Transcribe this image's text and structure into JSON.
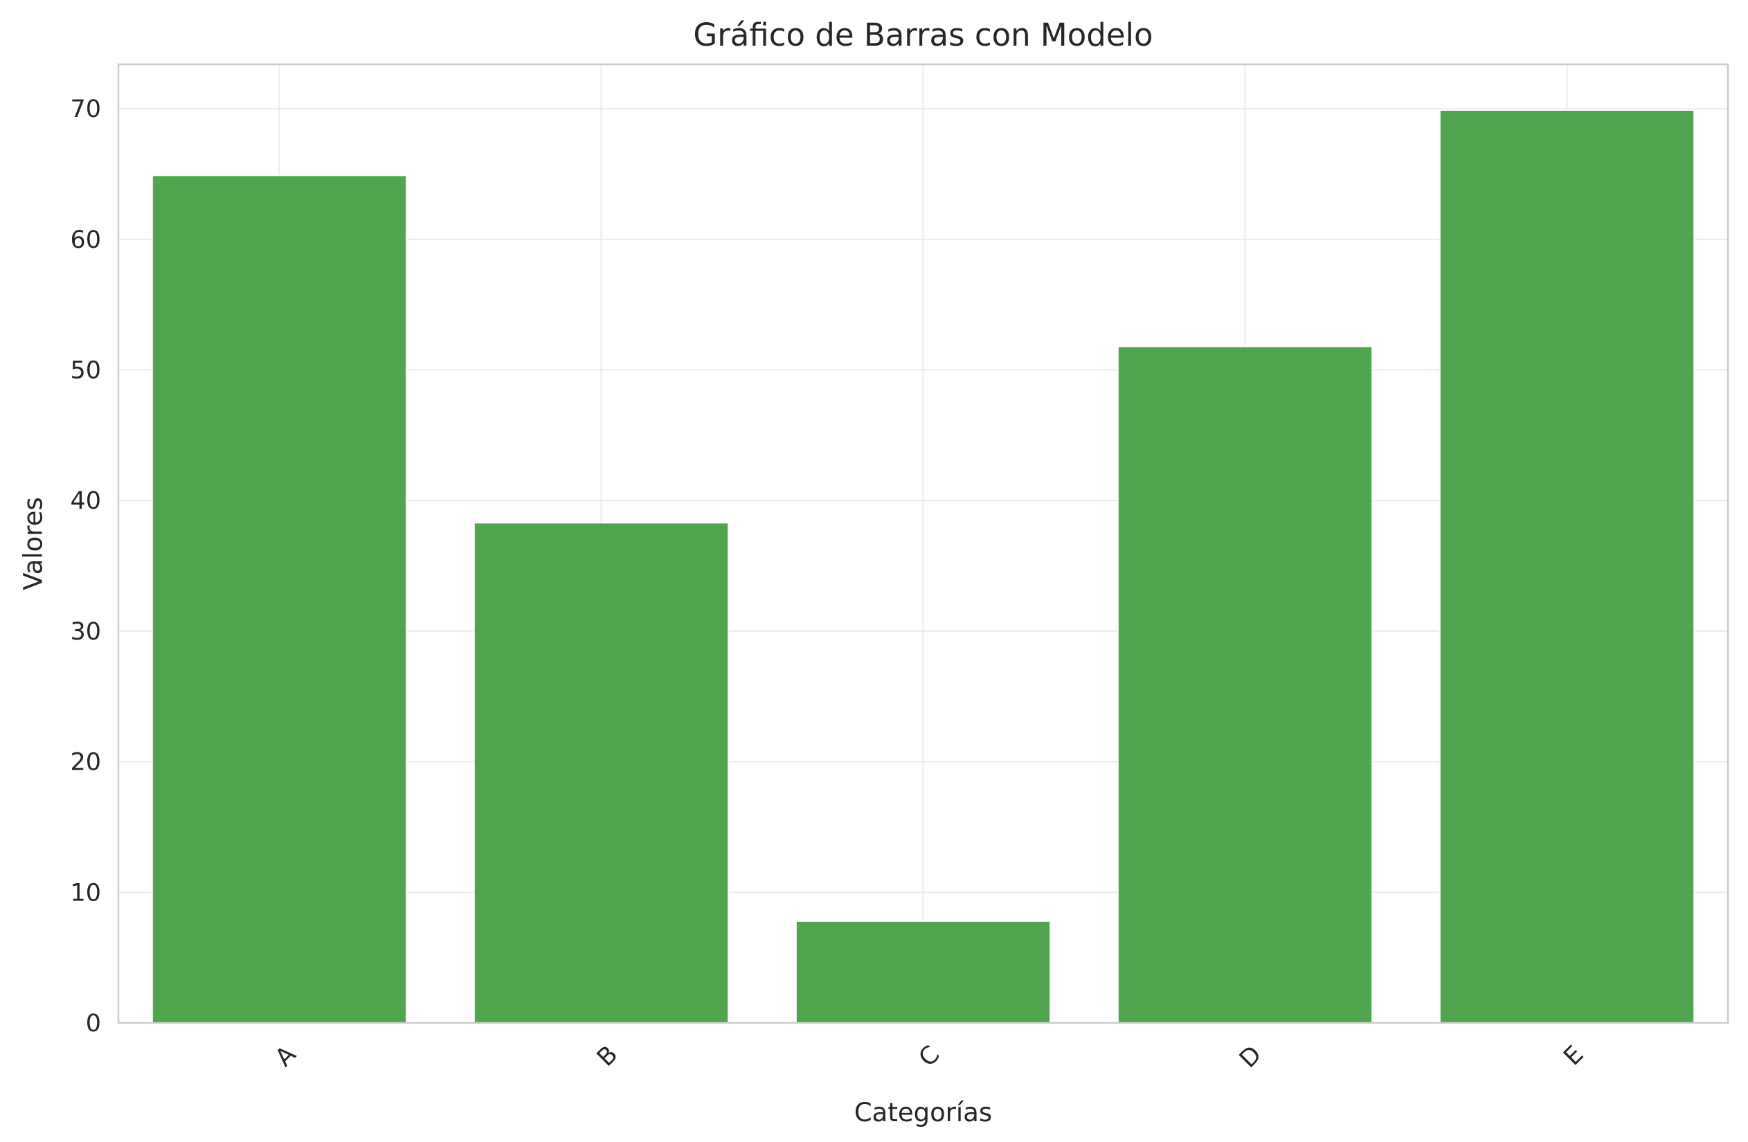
{
  "chart_data": {
    "type": "bar",
    "title": "Gráfico de Barras con Modelo",
    "xlabel": "Categorías",
    "ylabel": "Valores",
    "categories": [
      "A",
      "B",
      "C",
      "D",
      "E"
    ],
    "values": [
      64.9,
      38.3,
      7.8,
      51.8,
      69.9
    ],
    "ylim": [
      0,
      73.4
    ],
    "yticks": [
      0,
      10,
      20,
      30,
      40,
      50,
      60,
      70
    ],
    "xtick_rotation": 45,
    "grid": true,
    "legend": "none",
    "bar_color": "#3c9c3c",
    "bar_opacity": 0.9
  }
}
